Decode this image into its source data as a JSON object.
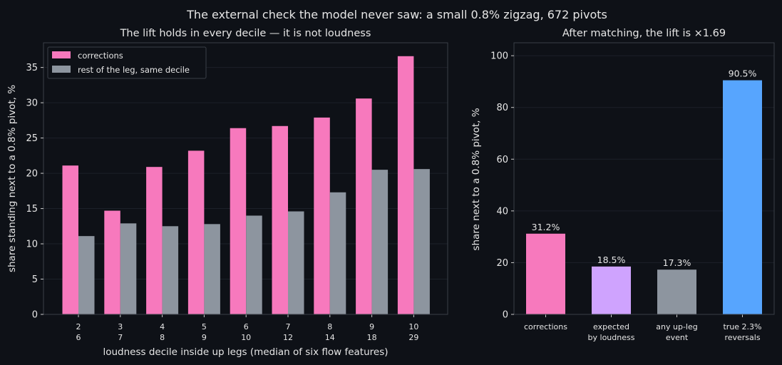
{
  "suptitle": "The external check the model never saw: a small 0.8% zigzag, 672 pivots",
  "colors": {
    "background": "#0e1117",
    "corrections": "#f779bd",
    "rest": "#8d959f",
    "expected": "#cfa3fe",
    "true_reversals": "#57a5fe",
    "frame": "#3a3f47",
    "grid": "#1c2129"
  },
  "chart_data": [
    {
      "type": "bar",
      "title": "The lift holds in every decile — it is not loudness",
      "xlabel": "loudness decile inside up legs (median of six flow features)",
      "ylabel": "share standing next to a 0.8% pivot, %",
      "categories": [
        "2",
        "3",
        "4",
        "5",
        "6",
        "7",
        "8",
        "9",
        "10"
      ],
      "category_sublabels": [
        "6",
        "7",
        "8",
        "9",
        "10",
        "12",
        "14",
        "18",
        "29"
      ],
      "series": [
        {
          "name": "corrections",
          "color": "#f779bd",
          "values": [
            21.1,
            14.7,
            20.9,
            23.2,
            26.4,
            26.7,
            27.9,
            30.6,
            36.6
          ]
        },
        {
          "name": "rest of the leg, same decile",
          "color": "#8d959f",
          "values": [
            11.1,
            12.9,
            12.5,
            12.8,
            14.0,
            14.6,
            17.3,
            20.5,
            20.6
          ]
        }
      ],
      "ylim": [
        0,
        38.5
      ],
      "yticks": [
        0,
        5,
        10,
        15,
        20,
        25,
        30,
        35
      ],
      "legend": "top-left",
      "grid": true
    },
    {
      "type": "bar",
      "title": "After matching, the lift is ×1.69",
      "xlabel": "",
      "ylabel": "share next to a 0.8% pivot, %",
      "categories": [
        "corrections",
        "expected\nby loudness",
        "any up-leg\nevent",
        "true 2.3%\nreversals"
      ],
      "values": [
        31.2,
        18.5,
        17.3,
        90.5
      ],
      "value_labels": [
        "31.2%",
        "18.5%",
        "17.3%",
        "90.5%"
      ],
      "bar_colors": [
        "#f779bd",
        "#cfa3fe",
        "#8d959f",
        "#57a5fe"
      ],
      "ylim": [
        0,
        105
      ],
      "yticks": [
        0,
        20,
        40,
        60,
        80,
        100
      ],
      "grid": true
    }
  ]
}
